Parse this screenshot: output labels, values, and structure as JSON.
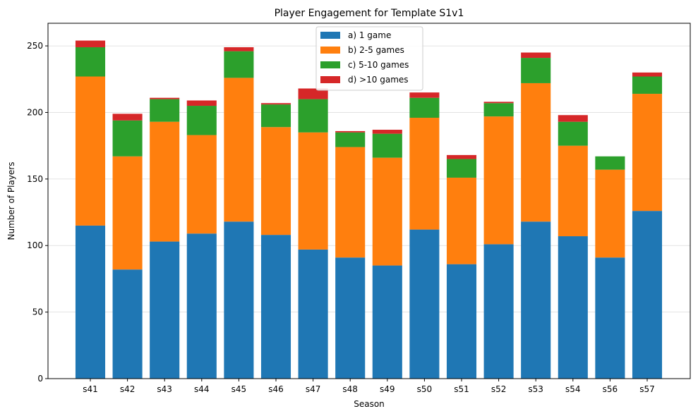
{
  "chart_data": {
    "type": "bar",
    "stacked": true,
    "title": "Player Engagement for Template S1v1",
    "xlabel": "Season",
    "ylabel": "Number of Players",
    "categories": [
      "s41",
      "s42",
      "s43",
      "s44",
      "s45",
      "s46",
      "s47",
      "s48",
      "s49",
      "s50",
      "s51",
      "s52",
      "s53",
      "s54",
      "s56",
      "s57"
    ],
    "ylim": [
      0,
      267
    ],
    "yticks": [
      0,
      50,
      100,
      150,
      200,
      250
    ],
    "grid": "y",
    "legend_position": "top-center",
    "series": [
      {
        "name": "a) 1 game",
        "color": "#1f77b4",
        "values": [
          115,
          82,
          103,
          109,
          118,
          108,
          97,
          91,
          85,
          112,
          86,
          101,
          118,
          107,
          91,
          126
        ]
      },
      {
        "name": "b) 2-5 games",
        "color": "#ff7f0e",
        "values": [
          112,
          85,
          90,
          74,
          108,
          81,
          88,
          83,
          81,
          84,
          65,
          96,
          104,
          68,
          66,
          88
        ]
      },
      {
        "name": "c) 5-10 games",
        "color": "#2ca02c",
        "values": [
          22,
          27,
          17,
          22,
          20,
          17,
          25,
          11,
          18,
          15,
          14,
          10,
          19,
          18,
          10,
          13
        ]
      },
      {
        "name": "d) >10 games",
        "color": "#d62728",
        "values": [
          5,
          5,
          1,
          4,
          3,
          1,
          8,
          1,
          3,
          4,
          3,
          1,
          4,
          5,
          0,
          3
        ]
      }
    ]
  }
}
